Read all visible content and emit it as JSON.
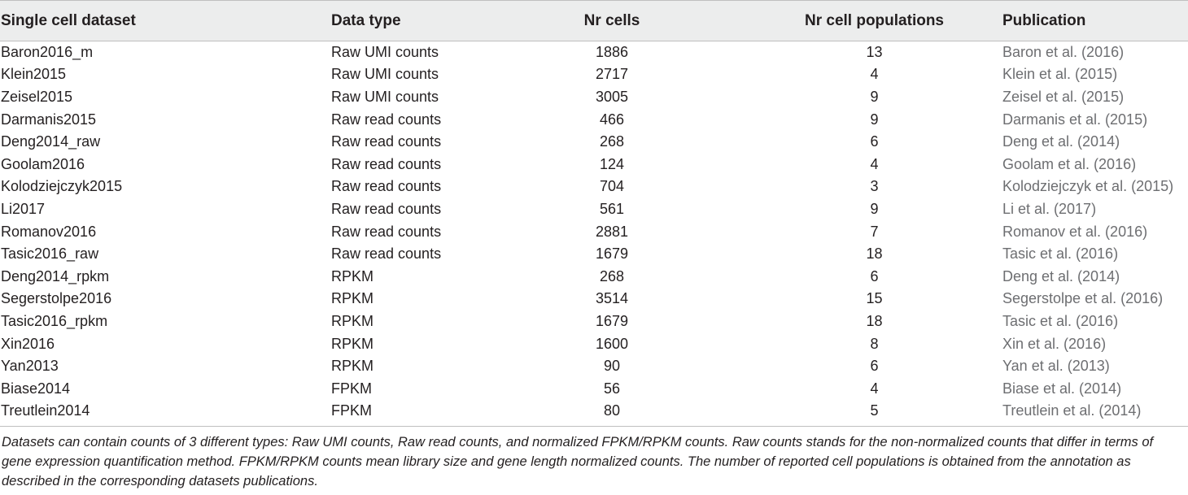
{
  "table": {
    "headers": [
      "Single cell dataset",
      "Data type",
      "Nr cells",
      "Nr cell populations",
      "Publication"
    ],
    "rows": [
      [
        "Baron2016_m",
        "Raw UMI counts",
        "1886",
        "13",
        "Baron et al. (2016)"
      ],
      [
        "Klein2015",
        "Raw UMI counts",
        "2717",
        "4",
        "Klein et al. (2015)"
      ],
      [
        "Zeisel2015",
        "Raw UMI counts",
        "3005",
        "9",
        "Zeisel et al. (2015)"
      ],
      [
        "Darmanis2015",
        "Raw read counts",
        "466",
        "9",
        "Darmanis et al. (2015)"
      ],
      [
        "Deng2014_raw",
        "Raw read counts",
        "268",
        "6",
        "Deng et al. (2014)"
      ],
      [
        "Goolam2016",
        "Raw read counts",
        "124",
        "4",
        "Goolam et al. (2016)"
      ],
      [
        "Kolodziejczyk2015",
        "Raw read counts",
        "704",
        "3",
        "Kolodziejczyk et al. (2015)"
      ],
      [
        "Li2017",
        "Raw read counts",
        "561",
        "9",
        "Li et al. (2017)"
      ],
      [
        "Romanov2016",
        "Raw read counts",
        "2881",
        "7",
        "Romanov et al. (2016)"
      ],
      [
        "Tasic2016_raw",
        "Raw read counts",
        "1679",
        "18",
        "Tasic et al. (2016)"
      ],
      [
        "Deng2014_rpkm",
        "RPKM",
        "268",
        "6",
        "Deng et al. (2014)"
      ],
      [
        "Segerstolpe2016",
        "RPKM",
        "3514",
        "15",
        "Segerstolpe et al. (2016)"
      ],
      [
        "Tasic2016_rpkm",
        "RPKM",
        "1679",
        "18",
        "Tasic et al. (2016)"
      ],
      [
        "Xin2016",
        "RPKM",
        "1600",
        "8",
        "Xin et al. (2016)"
      ],
      [
        "Yan2013",
        "RPKM",
        "90",
        "6",
        "Yan et al. (2013)"
      ],
      [
        "Biase2014",
        "FPKM",
        "56",
        "4",
        "Biase et al. (2014)"
      ],
      [
        "Treutlein2014",
        "FPKM",
        "80",
        "5",
        "Treutlein et al. (2014)"
      ]
    ]
  },
  "footnote": "Datasets can contain counts of 3 different types: Raw UMI counts, Raw read counts, and normalized FPKM/RPKM counts. Raw counts stands for the non-normalized counts that differ in terms of gene expression quantification method. FPKM/RPKM counts mean library size and gene length normalized counts. The number of reported cell populations is obtained from the annotation as described in the corresponding datasets publications.",
  "colors": {
    "header_bg": "#eceded",
    "rule": "#bfbfbf",
    "text": "#231f20",
    "publication_text": "#6d6e71"
  }
}
